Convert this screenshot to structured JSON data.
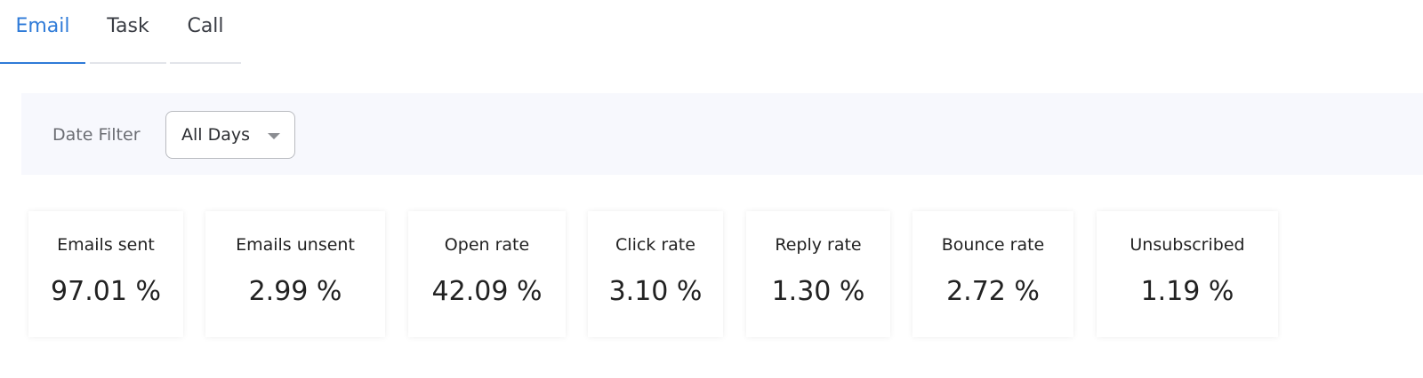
{
  "tabs": [
    {
      "label": "Email",
      "active": true
    },
    {
      "label": "Task"
    },
    {
      "label": "Call"
    }
  ],
  "filter": {
    "label": "Date Filter",
    "value": "All Days"
  },
  "accent": "#2f7bd8",
  "metrics": [
    {
      "title": "Emails sent",
      "value": "97.01 %"
    },
    {
      "title": "Emails unsent",
      "value": "2.99 %"
    },
    {
      "title": "Open rate",
      "value": "42.09 %"
    },
    {
      "title": "Click rate",
      "value": "3.10 %"
    },
    {
      "title": "Reply rate",
      "value": "1.30 %"
    },
    {
      "title": "Bounce rate",
      "value": "2.72 %"
    },
    {
      "title": "Unsubscribed",
      "value": "1.19 %"
    }
  ]
}
